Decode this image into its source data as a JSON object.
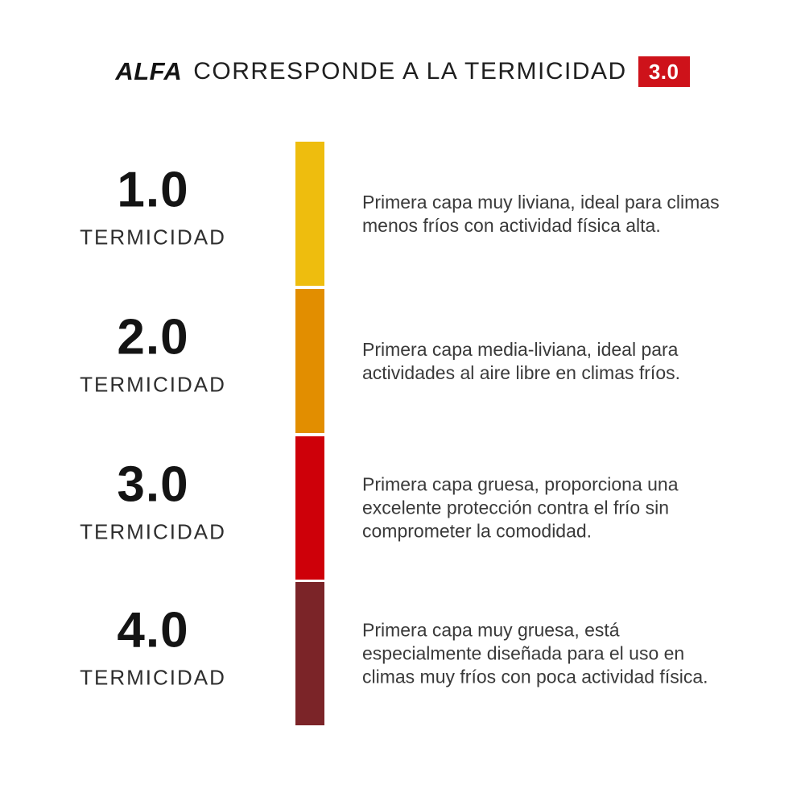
{
  "page": {
    "background": "#ffffff"
  },
  "header": {
    "brand": "ALFA",
    "title": "CORRESPONDE A LA TERMICIDAD",
    "badge_value": "3.0",
    "badge_color": "#ce121a"
  },
  "scale": {
    "orientation": "vertical",
    "levels": [
      {
        "value": "1.0",
        "label": "TERMICIDAD",
        "color": "#eebd0e",
        "description": "Primera capa muy liviana, ideal para climas\nmenos fríos con actividad física alta."
      },
      {
        "value": "2.0",
        "label": "TERMICIDAD",
        "color": "#e28e00",
        "description": "Primera capa media-liviana, ideal para\nactividades al aire libre en climas fríos."
      },
      {
        "value": "3.0",
        "label": "TERMICIDAD",
        "color": "#ce0009",
        "description": "Primera capa gruesa, proporciona una\nexcelente protección contra el frío sin\ncomprometer la comodidad."
      },
      {
        "value": "4.0",
        "label": "TERMICIDAD",
        "color": "#7b2428",
        "description": "Primera capa muy gruesa, está\nespecialmente diseñada para el uso en\nclimas muy fríos con poca actividad física."
      }
    ]
  }
}
